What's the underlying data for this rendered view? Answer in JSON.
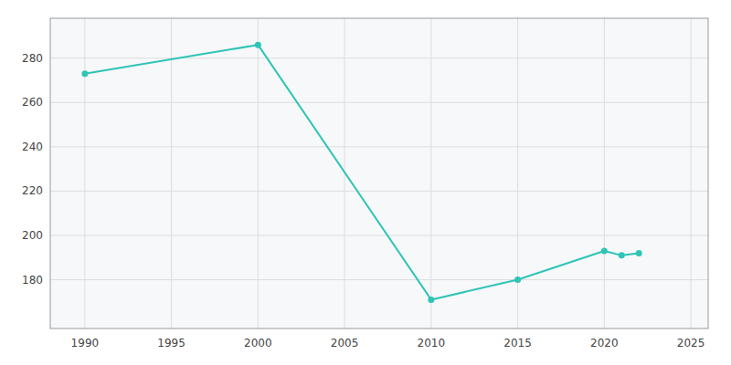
{
  "chart_data": {
    "type": "line",
    "x": [
      1990,
      2000,
      2010,
      2015,
      2020,
      2021,
      2022
    ],
    "values": [
      273,
      286,
      171,
      180,
      193,
      191,
      192
    ],
    "color": "#2ec4b6",
    "marker": "circle",
    "xlim": [
      1988,
      2026
    ],
    "ylim": [
      158,
      298
    ],
    "xticks": [
      1990,
      1995,
      2000,
      2005,
      2010,
      2015,
      2020,
      2025
    ],
    "yticks": [
      180,
      200,
      220,
      240,
      260,
      280
    ],
    "grid": true
  }
}
